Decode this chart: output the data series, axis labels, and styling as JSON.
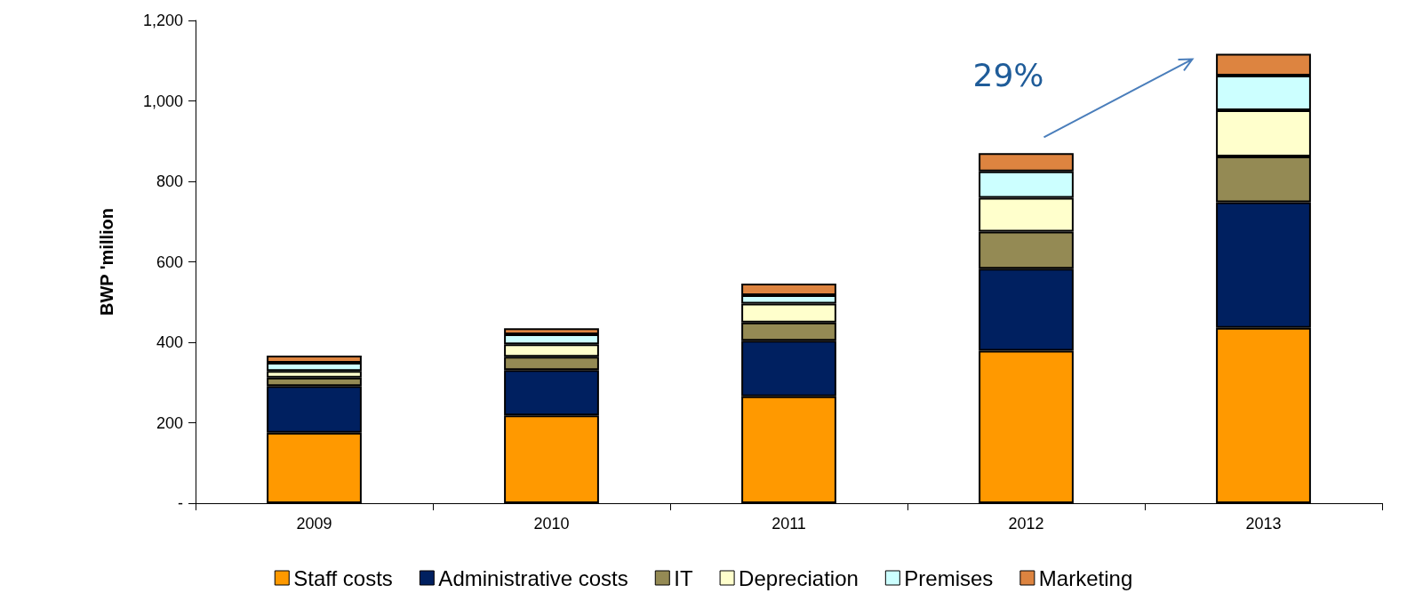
{
  "chart_data": {
    "type": "bar",
    "stacked": true,
    "ylabel": "BWP 'million",
    "categories": [
      "2009",
      "2010",
      "2011",
      "2012",
      "2013"
    ],
    "series": [
      {
        "name": "Staff costs",
        "color": "#ff9900",
        "values": [
          175,
          218,
          266,
          379,
          436
        ]
      },
      {
        "name": "Administrative costs",
        "color": "#002060",
        "values": [
          116,
          113,
          138,
          204,
          312
        ]
      },
      {
        "name": "IT",
        "color": "#948a54",
        "values": [
          21,
          33,
          45,
          92,
          114
        ]
      },
      {
        "name": "Depreciation",
        "color": "#ffffcc",
        "values": [
          17,
          31,
          47,
          84,
          115
        ]
      },
      {
        "name": "Premises",
        "color": "#ccffff",
        "values": [
          20,
          25,
          21,
          66,
          86
        ]
      },
      {
        "name": "Marketing",
        "color": "#dd8440",
        "values": [
          18,
          15,
          29,
          45,
          54
        ]
      }
    ],
    "ylim": [
      0,
      1200
    ],
    "yticks": [
      {
        "value": 0,
        "label": "-"
      },
      200,
      400,
      600,
      800,
      {
        "value": 1000,
        "label": "1,000"
      },
      {
        "value": 1200,
        "label": "1,200"
      }
    ],
    "grid": false,
    "legend": "bottom",
    "annotations": [
      "29%"
    ]
  }
}
